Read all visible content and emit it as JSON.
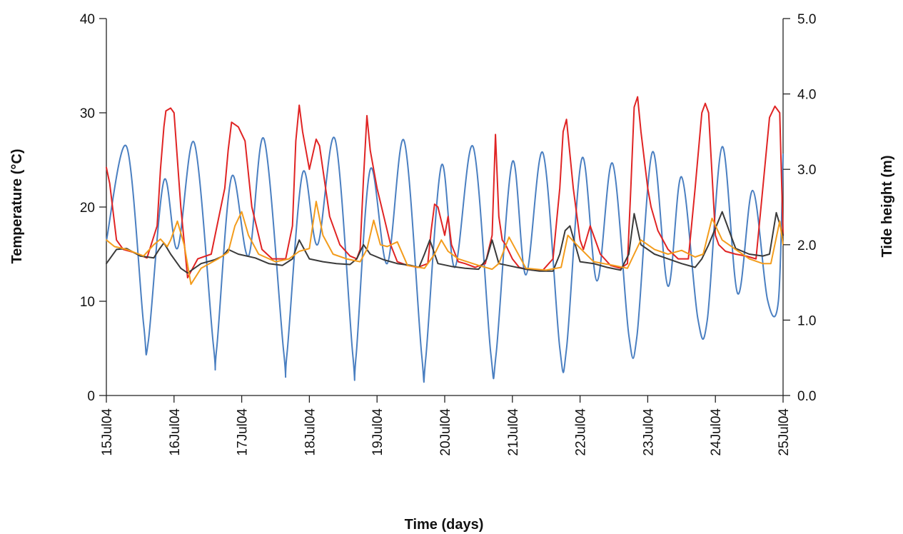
{
  "chart_data": {
    "type": "line",
    "title": "",
    "xlabel": "Time (days)",
    "ylabel": "Temperature (°C)",
    "y2label": "Tide height (m)",
    "xlim": [
      "2004-07-15",
      "2004-07-25"
    ],
    "ylim": [
      0,
      40
    ],
    "y2lim": [
      0.0,
      5.0
    ],
    "x_ticks": [
      "15Jul04",
      "16Jul04",
      "17Jul04",
      "18Jul04",
      "19Jul04",
      "20Jul04",
      "21Jul04",
      "22Jul04",
      "23Jul04",
      "24Jul04",
      "25Jul04"
    ],
    "y_ticks": [
      "0",
      "10",
      "20",
      "30",
      "40"
    ],
    "y2_ticks": [
      "0.0",
      "1.0",
      "2.0",
      "3.0",
      "4.0",
      "5.0"
    ],
    "grid": false,
    "legend": "none",
    "series": [
      {
        "color": "#4a7fc1",
        "axis": "right",
        "x_days": [
          0,
          0.3,
          0.55,
          0.62,
          0.85,
          1.05,
          1.3,
          1.58,
          1.63,
          1.85,
          2.1,
          2.33,
          2.62,
          2.67,
          2.9,
          3.12,
          3.38,
          3.64,
          3.69,
          3.9,
          4.15,
          4.4,
          4.66,
          4.72,
          4.95,
          5.15,
          5.42,
          5.68,
          5.76,
          6.0,
          6.2,
          6.45,
          6.7,
          6.8,
          7.03,
          7.25,
          7.48,
          7.72,
          7.84,
          8.07,
          8.3,
          8.5,
          8.74,
          8.88,
          9.1,
          9.33,
          9.55,
          9.77,
          9.93,
          10
        ],
        "values": [
          2.05,
          3.3,
          0.95,
          0.72,
          2.85,
          1.95,
          3.35,
          0.68,
          0.62,
          2.9,
          1.85,
          3.4,
          0.58,
          0.56,
          2.95,
          2.0,
          3.4,
          0.55,
          0.52,
          3.0,
          1.75,
          3.38,
          0.53,
          0.5,
          3.05,
          1.7,
          3.3,
          0.56,
          0.55,
          3.1,
          1.6,
          3.22,
          0.63,
          0.62,
          3.15,
          1.52,
          3.08,
          0.8,
          0.78,
          3.23,
          1.45,
          2.9,
          1.02,
          1.0,
          3.3,
          1.35,
          2.72,
          1.27,
          1.25,
          3.2
        ]
      },
      {
        "color": "#e02424",
        "axis": "left",
        "x_days": [
          0,
          0.05,
          0.15,
          0.25,
          0.4,
          0.6,
          0.75,
          0.8,
          0.85,
          0.88,
          0.95,
          1.0,
          1.1,
          1.2,
          1.35,
          1.55,
          1.75,
          1.8,
          1.85,
          1.95,
          2.05,
          2.15,
          2.3,
          2.45,
          2.65,
          2.75,
          2.8,
          2.85,
          2.9,
          3.0,
          3.1,
          3.15,
          3.3,
          3.45,
          3.6,
          3.7,
          3.75,
          3.8,
          3.85,
          3.9,
          4.0,
          4.1,
          4.2,
          4.3,
          4.45,
          4.6,
          4.75,
          4.8,
          4.85,
          4.9,
          5.0,
          5.05,
          5.1,
          5.2,
          5.3,
          5.45,
          5.6,
          5.7,
          5.75,
          5.8,
          5.85,
          5.9,
          6.0,
          6.1,
          6.2,
          6.3,
          6.45,
          6.6,
          6.7,
          6.75,
          6.8,
          6.9,
          7.0,
          7.05,
          7.15,
          7.3,
          7.45,
          7.6,
          7.7,
          7.75,
          7.8,
          7.85,
          7.9,
          8.0,
          8.05,
          8.15,
          8.3,
          8.45,
          8.6,
          8.7,
          8.8,
          8.85,
          8.9,
          9.0,
          9.05,
          9.15,
          9.3,
          9.45,
          9.6,
          9.7,
          9.8,
          9.88,
          9.95,
          10
        ],
        "values": [
          24.2,
          22.5,
          16.5,
          15.5,
          15.2,
          14.6,
          18,
          24,
          28.5,
          30.2,
          30.5,
          30,
          20,
          12.5,
          14.5,
          15,
          22,
          26,
          29,
          28.5,
          27,
          20,
          15.5,
          14.5,
          14.5,
          18,
          27,
          30.8,
          28,
          24,
          27.2,
          26.5,
          19,
          16,
          14.8,
          14.5,
          15.5,
          23,
          29.7,
          26,
          22,
          19,
          16,
          14.2,
          13.8,
          13.6,
          14,
          17.5,
          20.3,
          20,
          17,
          19,
          16,
          14.2,
          14,
          13.6,
          14,
          17,
          27.7,
          19,
          16.5,
          16,
          14.5,
          13.6,
          13.4,
          13.3,
          13.3,
          14.5,
          22,
          28,
          29.3,
          22,
          16.5,
          15.5,
          18,
          15,
          13.8,
          13.5,
          14,
          22,
          30.6,
          31.7,
          28,
          22,
          20,
          17.5,
          15.5,
          14.5,
          14.5,
          22,
          30,
          31,
          30,
          17,
          16,
          15.3,
          15,
          14.8,
          14.5,
          22,
          29.5,
          30.7,
          30,
          17
        ]
      },
      {
        "color": "#3a3a3a",
        "axis": "left",
        "x_days": [
          0,
          0.15,
          0.3,
          0.5,
          0.7,
          0.78,
          0.85,
          0.95,
          1.1,
          1.2,
          1.4,
          1.6,
          1.72,
          1.8,
          1.95,
          2.2,
          2.4,
          2.6,
          2.75,
          2.85,
          3.0,
          3.2,
          3.4,
          3.6,
          3.7,
          3.8,
          3.9,
          4.1,
          4.3,
          4.5,
          4.62,
          4.7,
          4.78,
          4.9,
          5.1,
          5.3,
          5.5,
          5.62,
          5.7,
          5.8,
          6.0,
          6.2,
          6.4,
          6.6,
          6.7,
          6.78,
          6.85,
          7.0,
          7.2,
          7.4,
          7.6,
          7.72,
          7.8,
          7.9,
          8.1,
          8.3,
          8.5,
          8.7,
          8.8,
          8.9,
          9.1,
          9.3,
          9.5,
          9.7,
          9.8,
          9.9,
          10
        ],
        "values": [
          14,
          15.5,
          15.6,
          14.8,
          14.6,
          15.5,
          16.2,
          15,
          13.5,
          13,
          14,
          14.4,
          14.8,
          15.5,
          15,
          14.6,
          14,
          13.8,
          14.5,
          16.5,
          14.5,
          14.2,
          14,
          13.9,
          14.5,
          16,
          15,
          14.4,
          14,
          13.8,
          13.6,
          15,
          16.5,
          14,
          13.7,
          13.5,
          13.4,
          14.5,
          16.5,
          14,
          13.7,
          13.4,
          13.2,
          13.2,
          15,
          17.5,
          18,
          14.2,
          14,
          13.6,
          13.3,
          15,
          19.3,
          16,
          15,
          14.5,
          14,
          13.6,
          14.5,
          16,
          19.5,
          15.6,
          15,
          14.8,
          15,
          19.4,
          17
        ]
      },
      {
        "color": "#f39c1c",
        "axis": "left",
        "x_days": [
          0,
          0.12,
          0.3,
          0.55,
          0.7,
          0.8,
          0.9,
          0.95,
          1.05,
          1.15,
          1.25,
          1.4,
          1.65,
          1.8,
          1.9,
          2.0,
          2.1,
          2.25,
          2.5,
          2.7,
          2.85,
          3.0,
          3.1,
          3.2,
          3.35,
          3.55,
          3.75,
          3.85,
          3.95,
          4.05,
          4.15,
          4.3,
          4.45,
          4.7,
          4.85,
          4.95,
          5.05,
          5.2,
          5.5,
          5.7,
          5.8,
          5.95,
          6.2,
          6.5,
          6.72,
          6.82,
          6.95,
          7.2,
          7.5,
          7.7,
          7.8,
          7.9,
          8.1,
          8.3,
          8.5,
          8.7,
          8.82,
          8.95,
          9.1,
          9.3,
          9.5,
          9.7,
          9.82,
          9.95,
          10
        ],
        "values": [
          16.5,
          15.8,
          15.5,
          14.8,
          16,
          16.6,
          15.8,
          16.5,
          18.5,
          16,
          11.8,
          13.5,
          14.5,
          15.2,
          18,
          19.5,
          17,
          15,
          14.2,
          14.5,
          15.3,
          15.6,
          20.6,
          17,
          15,
          14.5,
          14.2,
          15.5,
          18.6,
          16,
          15.8,
          16.3,
          13.8,
          13.5,
          15,
          16.5,
          15.3,
          14.5,
          13.8,
          13.4,
          14,
          16.8,
          13.5,
          13.3,
          13.6,
          17,
          16,
          14.2,
          13.8,
          13.5,
          15,
          16.5,
          15.5,
          15,
          15.4,
          14.7,
          15,
          18.8,
          16.5,
          15.5,
          14.5,
          14,
          14,
          18.5,
          16
        ]
      }
    ]
  }
}
